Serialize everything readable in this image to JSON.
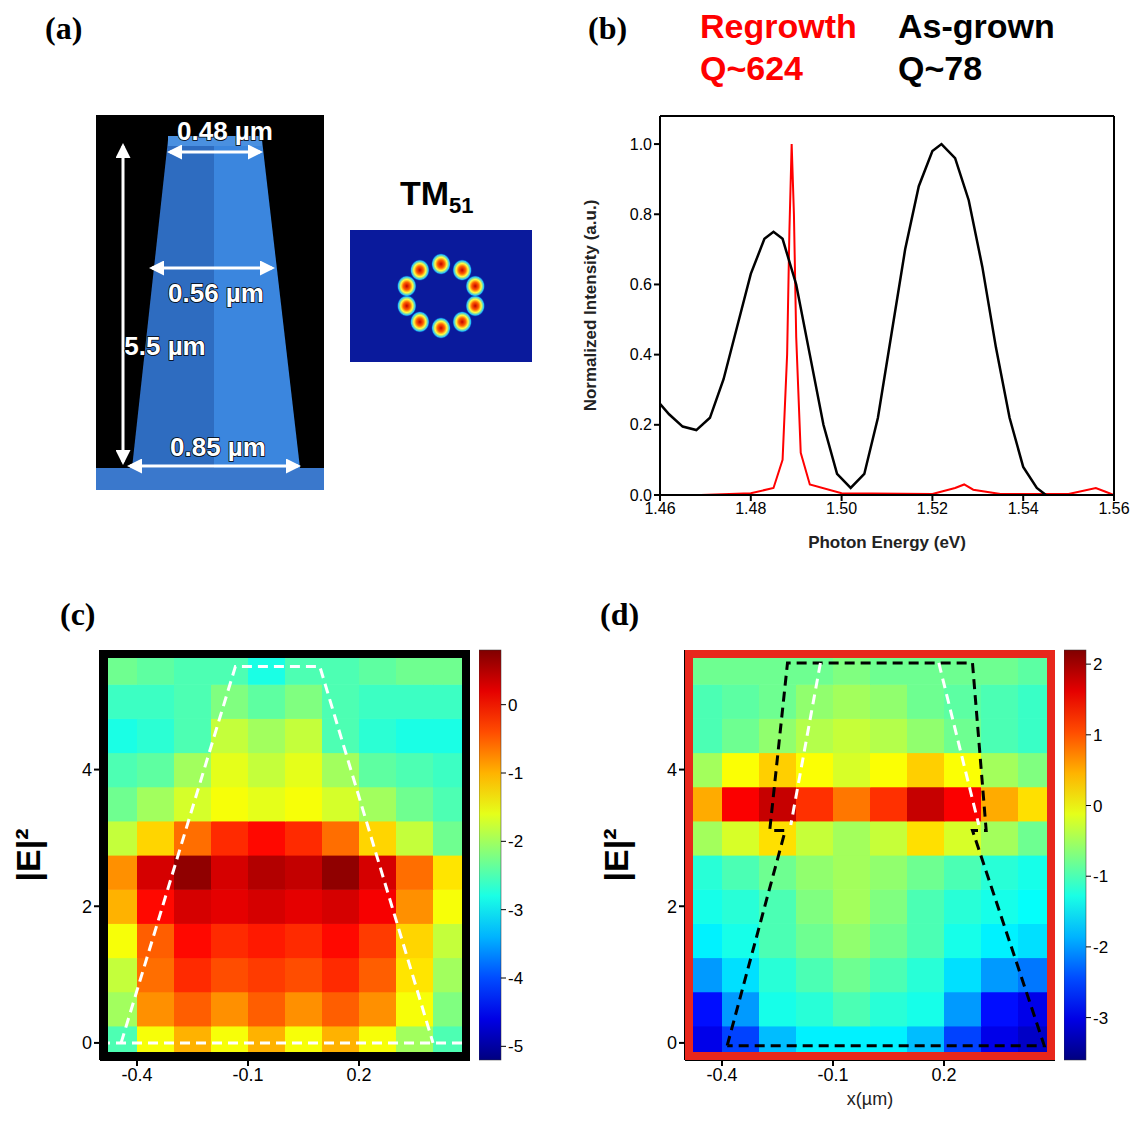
{
  "chart_data": [
    {
      "panel": "(a)",
      "type": "diagram",
      "dimensions": {
        "top": "0.48 µm",
        "middle": "0.56 µm",
        "height": "5.5 µm",
        "bottom": "0.85 µm"
      },
      "mode": {
        "name": "TM",
        "subscript": "51"
      }
    },
    {
      "panel": "(b)",
      "type": "line",
      "xlabel": "Photon Energy (eV)",
      "ylabel": "Normalized Intensity (a.u.)",
      "xlim": [
        1.46,
        1.56
      ],
      "xticks": [
        1.46,
        1.48,
        {
          "value": 1.5,
          "label": "1.50"
        },
        1.52,
        1.54,
        1.56
      ],
      "ylim": [
        0,
        1.08
      ],
      "yticks": [
        {
          "value": 0,
          "label": "0.0"
        },
        0.2,
        0.4,
        0.6,
        0.8,
        {
          "value": 1,
          "label": "1.0"
        }
      ],
      "series": [
        {
          "name": "Regrowth",
          "annotation": "Q~624",
          "color": "#ff0000",
          "x": [
            1.469,
            1.48,
            1.485,
            1.487,
            1.488,
            1.4885,
            1.489,
            1.4895,
            1.49,
            1.491,
            1.493,
            1.5,
            1.52,
            1.525,
            1.527,
            1.529,
            1.535,
            1.55,
            1.556,
            1.558,
            1.56
          ],
          "values": [
            0.0,
            0.005,
            0.02,
            0.1,
            0.4,
            0.75,
            1.0,
            0.8,
            0.45,
            0.12,
            0.03,
            0.005,
            0.003,
            0.02,
            0.03,
            0.015,
            0.003,
            0.003,
            0.02,
            0.01,
            0.0
          ]
        },
        {
          "name": "As-grown",
          "annotation": "Q~78",
          "color": "#000000",
          "x": [
            1.46,
            1.462,
            1.465,
            1.468,
            1.471,
            1.474,
            1.477,
            1.48,
            1.483,
            1.485,
            1.487,
            1.49,
            1.493,
            1.496,
            1.499,
            1.502,
            1.505,
            1.508,
            1.511,
            1.514,
            1.517,
            1.52,
            1.522,
            1.525,
            1.528,
            1.531,
            1.534,
            1.537,
            1.54,
            1.543,
            1.545
          ],
          "values": [
            0.26,
            0.23,
            0.195,
            0.185,
            0.22,
            0.33,
            0.48,
            0.63,
            0.73,
            0.75,
            0.73,
            0.6,
            0.4,
            0.2,
            0.06,
            0.02,
            0.06,
            0.22,
            0.46,
            0.7,
            0.88,
            0.98,
            1.0,
            0.96,
            0.84,
            0.65,
            0.42,
            0.22,
            0.08,
            0.02,
            0.0
          ]
        }
      ]
    },
    {
      "panel": "(c)",
      "type": "heatmap",
      "ylabel": "|E|²",
      "color": "#000000",
      "xlim": [
        -0.5,
        0.5
      ],
      "xticks": [
        -0.4,
        -0.1,
        0.2
      ],
      "ylim": [
        -0.25,
        5.75
      ],
      "yticks": [
        0,
        2,
        4
      ],
      "x": [
        -0.45,
        -0.35,
        -0.25,
        -0.15,
        -0.05,
        0.05,
        0.15,
        0.25,
        0.35,
        0.45
      ],
      "y": [
        0,
        0.5,
        1,
        1.5,
        2,
        2.5,
        3,
        3.5,
        4,
        4.5,
        5,
        5.5
      ],
      "cells": [
        [
          -2.5,
          -1.5,
          -1.0,
          -1.5,
          -1.0,
          -1.5,
          -1.0,
          -1.5,
          -2.0,
          -2.5
        ],
        [
          -2.0,
          -0.8,
          -0.5,
          -0.8,
          -0.5,
          -0.8,
          -0.5,
          -0.8,
          -1.5,
          -2.2
        ],
        [
          -1.8,
          -0.6,
          -0.2,
          -0.4,
          -0.3,
          -0.4,
          -0.2,
          -0.5,
          -1.3,
          -2.0
        ],
        [
          -1.5,
          -0.5,
          0.0,
          -0.2,
          -0.1,
          -0.2,
          0.0,
          -0.3,
          -1.2,
          -1.8
        ],
        [
          -1.0,
          0.0,
          0.3,
          0.2,
          0.3,
          0.2,
          0.3,
          0.1,
          -0.8,
          -1.5
        ],
        [
          -0.8,
          0.3,
          0.7,
          0.3,
          0.5,
          0.4,
          0.7,
          0.3,
          -0.6,
          -1.3
        ],
        [
          -1.8,
          -1.2,
          -0.6,
          -0.2,
          0.0,
          -0.2,
          -0.6,
          -1.2,
          -1.8,
          -2.3
        ],
        [
          -2.3,
          -2.0,
          -1.7,
          -1.5,
          -1.6,
          -1.5,
          -1.7,
          -2.0,
          -2.3,
          -2.5
        ],
        [
          -2.5,
          -2.4,
          -2.0,
          -1.6,
          -1.8,
          -1.6,
          -2.0,
          -2.4,
          -2.5,
          -2.6
        ],
        [
          -2.8,
          -2.7,
          -2.5,
          -1.8,
          -2.0,
          -1.8,
          -2.5,
          -2.7,
          -2.8,
          -2.8
        ],
        [
          -2.6,
          -2.6,
          -2.5,
          -2.2,
          -2.4,
          -2.2,
          -2.5,
          -2.6,
          -2.6,
          -2.6
        ],
        [
          -2.3,
          -2.4,
          -2.5,
          -2.5,
          -2.8,
          -2.5,
          -2.5,
          -2.4,
          -2.3,
          -2.3
        ]
      ],
      "colorbar": {
        "range": [
          -5.2,
          0.8
        ],
        "ticks": [
          0,
          -1,
          -2,
          -3,
          -4,
          -5
        ]
      },
      "outlines": [
        {
          "color": "#ffffff",
          "line_style": "dashed",
          "x": [
            -0.443,
            -0.134,
            0.094,
            0.4
          ],
          "y": [
            0,
            5.51,
            5.51,
            0
          ]
        },
        {
          "color": "#ffffff",
          "line_style": "dashed",
          "x": [
            -0.5,
            0.5
          ],
          "y": [
            0,
            0
          ]
        }
      ]
    },
    {
      "panel": "(d)",
      "type": "heatmap",
      "ylabel": "|E|²",
      "xlabel": "x(µm)",
      "color": "#e8271c",
      "xlim": [
        -0.5,
        0.5
      ],
      "xticks": [
        -0.4,
        -0.1,
        0.2
      ],
      "ylim": [
        -0.25,
        5.75
      ],
      "yticks": [
        0,
        2,
        4
      ],
      "x": [
        -0.45,
        -0.35,
        -0.25,
        -0.15,
        -0.05,
        0.05,
        0.15,
        0.25,
        0.35,
        0.45
      ],
      "y": [
        0,
        0.5,
        1,
        1.5,
        2,
        2.5,
        3,
        3.5,
        4,
        4.5,
        5,
        5.5
      ],
      "cells": [
        [
          -3.0,
          -2.5,
          -1.8,
          -1.5,
          -1.5,
          -1.5,
          -1.8,
          -2.5,
          -3.0,
          -3.2
        ],
        [
          -2.8,
          -2.0,
          -1.3,
          -1.2,
          -1.0,
          -1.2,
          -1.3,
          -2.0,
          -2.8,
          -3.0
        ],
        [
          -2.0,
          -1.6,
          -1.2,
          -1.0,
          -0.8,
          -1.0,
          -1.2,
          -1.6,
          -2.0,
          -2.2
        ],
        [
          -1.5,
          -1.3,
          -1.0,
          -0.8,
          -0.6,
          -0.8,
          -1.0,
          -1.3,
          -1.5,
          -1.6
        ],
        [
          -1.3,
          -1.2,
          -1.0,
          -0.7,
          -0.5,
          -0.7,
          -1.0,
          -1.2,
          -1.3,
          -1.4
        ],
        [
          -1.2,
          -1.0,
          -0.8,
          -0.6,
          -0.5,
          -0.6,
          -0.8,
          -1.0,
          -1.2,
          -1.3
        ],
        [
          -0.5,
          -0.2,
          0.2,
          -0.3,
          -0.5,
          -0.3,
          0.2,
          -0.2,
          -0.5,
          -0.8
        ],
        [
          0.5,
          1.5,
          1.8,
          1.2,
          0.8,
          1.2,
          1.8,
          1.5,
          0.5,
          0.2
        ],
        [
          -0.5,
          0.0,
          0.3,
          0.0,
          -0.2,
          0.0,
          0.3,
          0.0,
          -0.5,
          -0.7
        ],
        [
          -1.0,
          -0.8,
          -0.6,
          -0.4,
          -0.3,
          -0.4,
          -0.6,
          -0.8,
          -1.0,
          -1.1
        ],
        [
          -1.0,
          -0.9,
          -0.8,
          -0.6,
          -0.5,
          -0.6,
          -0.8,
          -0.9,
          -1.0,
          -1.1
        ],
        [
          -0.8,
          -0.8,
          -0.8,
          -0.8,
          -0.7,
          -0.8,
          -0.8,
          -0.8,
          -0.8,
          -0.9
        ]
      ],
      "colorbar": {
        "range": [
          -3.6,
          2.2
        ],
        "ticks": [
          2,
          1,
          0,
          -1,
          -2,
          -3
        ]
      },
      "outlines": [
        {
          "color": "#000000",
          "line_style": "dashed",
          "x": [
            -0.386,
            -0.229,
            -0.271,
            -0.223,
            0.277,
            0.314,
            0.277,
            0.471,
            -0.386
          ],
          "y": [
            -0.04,
            3.11,
            3.11,
            5.56,
            5.56,
            3.11,
            3.11,
            -0.04,
            -0.04
          ]
        },
        {
          "color": "#ffffff",
          "line_style": "dashed",
          "x": [
            -0.134,
            -0.214
          ],
          "y": [
            5.56,
            3.19
          ]
        },
        {
          "color": "#ffffff",
          "line_style": "dashed",
          "x": [
            0.186,
            0.294
          ],
          "y": [
            5.56,
            3.19
          ]
        }
      ]
    }
  ]
}
